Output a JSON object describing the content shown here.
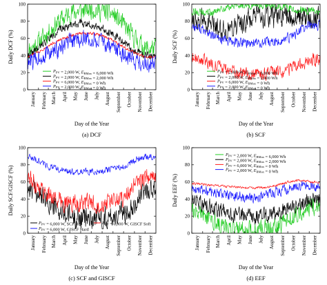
{
  "figure": {
    "background": "#ffffff"
  },
  "colors": {
    "black": "#000000",
    "red": "#ff1a1a",
    "blue": "#1a1aff",
    "green": "#22cc22",
    "axis": "#000000"
  },
  "chart_data": [
    {
      "id": "a",
      "type": "line",
      "caption": "(a)  DCF",
      "ylabel": "Daily DCF (%)",
      "xlabel": "Day of the Year",
      "ylim": [
        0,
        100
      ],
      "yticks": [
        0,
        20,
        40,
        60,
        80,
        100
      ],
      "months": [
        "January",
        "February",
        "March",
        "April",
        "May",
        "June",
        "July",
        "August",
        "September",
        "October",
        "November",
        "December"
      ],
      "legend_position": "bottom-center",
      "legend": [
        {
          "text": "P_PV = 2,000 W, E_BMax = 6,000 Wh",
          "color": "green"
        },
        {
          "text": "P_PV = 2,000 W, E_BMax = 2,000 Wh",
          "color": "black"
        },
        {
          "text": "P_PV = 6,000 W, E_BMax = 0 Wh",
          "color": "red"
        },
        {
          "text": "P_PV = 2,000 W, E_BMax = 0 Wh",
          "color": "blue"
        }
      ],
      "series": [
        {
          "color": "green",
          "mean_by_month": [
            45,
            55,
            68,
            80,
            90,
            92,
            95,
            92,
            88,
            75,
            60,
            48
          ],
          "noise": 16,
          "min": 10,
          "max": 100,
          "seed": 11
        },
        {
          "color": "black",
          "mean_by_month": [
            40,
            48,
            60,
            70,
            76,
            78,
            76,
            72,
            65,
            55,
            45,
            40
          ],
          "noise": 6,
          "min": 0,
          "max": 100,
          "seed": 22
        },
        {
          "color": "red",
          "mean_by_month": [
            38,
            44,
            52,
            58,
            63,
            66,
            66,
            63,
            58,
            50,
            43,
            38
          ],
          "noise": 2.5,
          "min": 0,
          "max": 100,
          "seed": 33
        },
        {
          "color": "blue",
          "mean_by_month": [
            30,
            38,
            42,
            48,
            55,
            60,
            58,
            55,
            50,
            42,
            35,
            30
          ],
          "noise": 14,
          "min": 5,
          "max": 80,
          "seed": 44
        }
      ]
    },
    {
      "id": "b",
      "type": "line",
      "caption": "(b)  SCF",
      "ylabel": "Daily SCF (%)",
      "xlabel": "Day of the Year",
      "ylim": [
        0,
        100
      ],
      "yticks": [
        0,
        20,
        40,
        60,
        80,
        100
      ],
      "months": [
        "January",
        "February",
        "March",
        "April",
        "May",
        "June",
        "July",
        "August",
        "September",
        "October",
        "November",
        "December"
      ],
      "legend_position": "bottom-center",
      "legend": [
        {
          "text": "P_PV = 2,000 W, E_BMax = 6,000 Wh",
          "color": "green"
        },
        {
          "text": "P_PV = 2,000 W, E_BMax = 2,000 Wh",
          "color": "black"
        },
        {
          "text": "P_PV = 6,000 W, E_BMax = 0 Wh",
          "color": "red"
        },
        {
          "text": "P_PV = 2,000 W, E_BMax = 0 Wh",
          "color": "blue"
        }
      ],
      "series": [
        {
          "color": "black",
          "mean_by_month": [
            85,
            80,
            75,
            70,
            75,
            80,
            85,
            85,
            85,
            85,
            85,
            85
          ],
          "noise": 18,
          "min": 20,
          "max": 100,
          "seed": 55
        },
        {
          "color": "green",
          "mean_by_month": [
            92,
            90,
            90,
            95,
            98,
            99,
            99,
            99,
            98,
            96,
            93,
            92
          ],
          "noise": 6,
          "min": 50,
          "max": 100,
          "seed": 66
        },
        {
          "color": "blue",
          "mean_by_month": [
            75,
            70,
            62,
            58,
            55,
            55,
            55,
            55,
            55,
            60,
            68,
            75
          ],
          "noise": 8,
          "min": 30,
          "max": 100,
          "seed": 77
        },
        {
          "color": "red",
          "mean_by_month": [
            40,
            35,
            30,
            25,
            20,
            18,
            18,
            18,
            20,
            22,
            28,
            35
          ],
          "noise": 10,
          "min": 5,
          "max": 100,
          "seed": 88
        }
      ]
    },
    {
      "id": "c",
      "type": "line",
      "caption": "(c)  SCF and GISCF",
      "ylabel": "Daily SCF/GISCF (%)",
      "xlabel": "Day of the Year",
      "ylim": [
        0,
        100
      ],
      "yticks": [
        0,
        20,
        40,
        60,
        80,
        100
      ],
      "months": [
        "January",
        "February",
        "March",
        "April",
        "May",
        "June",
        "July",
        "August",
        "September",
        "October",
        "November",
        "December"
      ],
      "legend_position": "bottom-center",
      "legend": [
        {
          "text": "P_PV = 6,000 W, SCF Ref",
          "color": "black"
        },
        {
          "text": "P_PV = 6,000 W, GISCF Soft",
          "color": "red"
        },
        {
          "text": "P_PV = 6,000 W, GISCF Hard",
          "color": "blue"
        }
      ],
      "series": [
        {
          "color": "black",
          "mean_by_month": [
            55,
            45,
            35,
            25,
            20,
            18,
            18,
            18,
            20,
            25,
            35,
            50
          ],
          "noise": 18,
          "min": 5,
          "max": 100,
          "seed": 99
        },
        {
          "color": "red",
          "mean_by_month": [
            65,
            55,
            45,
            38,
            35,
            35,
            35,
            35,
            38,
            42,
            55,
            65
          ],
          "noise": 14,
          "min": 20,
          "max": 100,
          "seed": 111
        },
        {
          "color": "blue",
          "mean_by_month": [
            90,
            85,
            78,
            74,
            72,
            72,
            72,
            73,
            75,
            78,
            85,
            90
          ],
          "noise": 5,
          "min": 40,
          "max": 100,
          "seed": 122
        }
      ]
    },
    {
      "id": "d",
      "type": "line",
      "caption": "(d)  EEF",
      "ylabel": "Daily EEF (%)",
      "xlabel": "Day of the Year",
      "ylim": [
        0,
        100
      ],
      "yticks": [
        0,
        20,
        40,
        60,
        80,
        100
      ],
      "months": [
        "January",
        "February",
        "March",
        "April",
        "May",
        "June",
        "July",
        "August",
        "September",
        "October",
        "November",
        "December"
      ],
      "legend_position": "top-left",
      "legend": [
        {
          "text": "P_PV = 2,000 W, E_BMax = 6,000 Wh",
          "color": "green"
        },
        {
          "text": "P_PV = 2,000 W, E_BMax = 2,000 Wh",
          "color": "black"
        },
        {
          "text": "P_PV = 6,000 W, E_BMax = 0 Wh",
          "color": "red"
        },
        {
          "text": "P_PV = 2,000 W, E_BMax = 0 Wh",
          "color": "blue"
        }
      ],
      "series": [
        {
          "color": "green",
          "mean_by_month": [
            30,
            25,
            15,
            8,
            5,
            3,
            3,
            5,
            8,
            15,
            25,
            30
          ],
          "noise": 15,
          "min": 0,
          "max": 60,
          "seed": 133
        },
        {
          "color": "black",
          "mean_by_month": [
            38,
            35,
            30,
            25,
            22,
            20,
            20,
            22,
            25,
            30,
            35,
            38
          ],
          "noise": 12,
          "min": 0,
          "max": 65,
          "seed": 144
        },
        {
          "color": "blue",
          "mean_by_month": [
            52,
            50,
            48,
            45,
            43,
            42,
            42,
            45,
            48,
            52,
            55,
            55
          ],
          "noise": 8,
          "min": 15,
          "max": 68,
          "seed": 155
        },
        {
          "color": "red",
          "mean_by_month": [
            58,
            57,
            56,
            55,
            54,
            53,
            53,
            54,
            56,
            60,
            62,
            60
          ],
          "noise": 2,
          "min": 40,
          "max": 70,
          "seed": 166
        }
      ]
    }
  ]
}
